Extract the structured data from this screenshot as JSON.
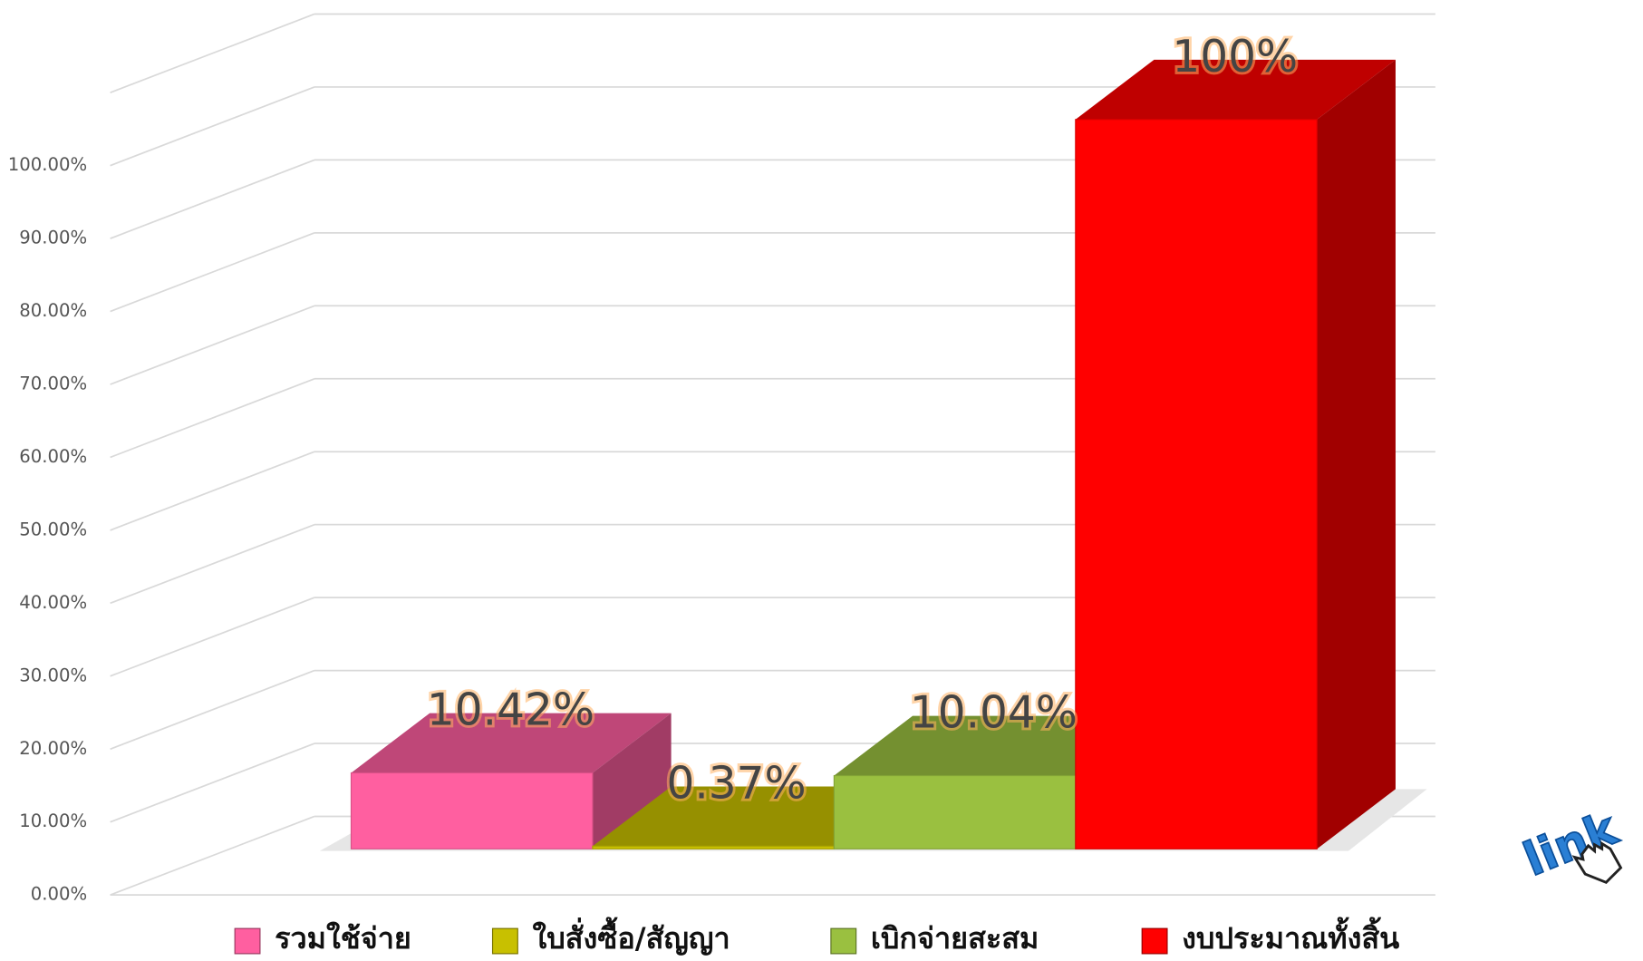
{
  "chart_data": {
    "type": "bar3d",
    "categories": [
      "รวมใช้จ่าย",
      "ใบสั่งซื้อ/สัญญา",
      "เบิกจ่ายสะสม",
      "งบประมาณทั้งสิ้น"
    ],
    "values": [
      10.42,
      0.37,
      10.04,
      100
    ],
    "value_labels": [
      "10.42%",
      "0.37%",
      "10.04%",
      "100%"
    ],
    "colors": [
      "#ff5fa0",
      "#c8c000",
      "#9ac040",
      "#ff0000"
    ],
    "ylim": [
      0,
      110
    ],
    "yticks": [
      {
        "value": 0,
        "label": "0.00%"
      },
      {
        "value": 10,
        "label": "10.00%"
      },
      {
        "value": 20,
        "label": "20.00%"
      },
      {
        "value": 30,
        "label": "30.00%"
      },
      {
        "value": 40,
        "label": "40.00%"
      },
      {
        "value": 50,
        "label": "50.00%"
      },
      {
        "value": 60,
        "label": "60.00%"
      },
      {
        "value": 70,
        "label": "70.00%"
      },
      {
        "value": 80,
        "label": "80.00%"
      },
      {
        "value": 90,
        "label": "90.00%"
      },
      {
        "value": 100,
        "label": "100.00%"
      }
    ],
    "grid": true,
    "legend": "bottom"
  },
  "link_icon": "link"
}
